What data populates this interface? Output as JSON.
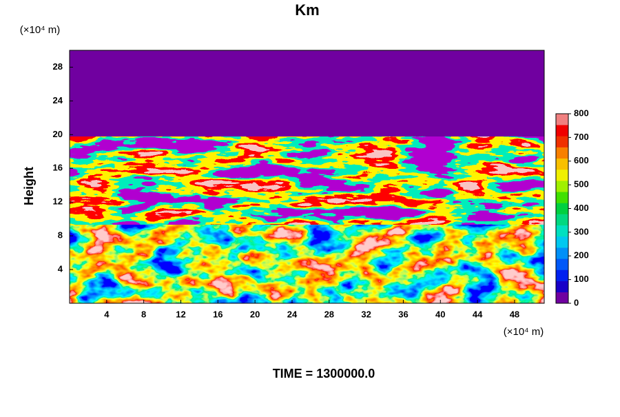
{
  "chart_data": {
    "type": "heatmap",
    "title": "Km",
    "x_unit_label": "(×10⁴ m)",
    "y_unit_label": "(×10⁴ m)",
    "y_label": "Height",
    "caption": "TIME = 1300000.0",
    "xlim": [
      0,
      51.2
    ],
    "xticks": [
      4,
      8,
      12,
      16,
      20,
      24,
      28,
      32,
      36,
      40,
      44,
      48
    ],
    "ylim": [
      0,
      30
    ],
    "yticks": [
      4,
      8,
      12,
      16,
      20,
      24,
      28
    ],
    "colorbar": {
      "lim": [
        0,
        800
      ],
      "ticks": [
        0,
        100,
        200,
        300,
        400,
        500,
        600,
        700,
        800
      ],
      "colors": [
        "#7000a0",
        "#1800c8",
        "#0020f0",
        "#0058f8",
        "#0090f8",
        "#00c8f0",
        "#00e0c0",
        "#00d880",
        "#00d040",
        "#40e000",
        "#a0f000",
        "#f0f000",
        "#f8c000",
        "#f88000",
        "#f03000",
        "#f00000",
        "#f08080"
      ]
    }
  }
}
